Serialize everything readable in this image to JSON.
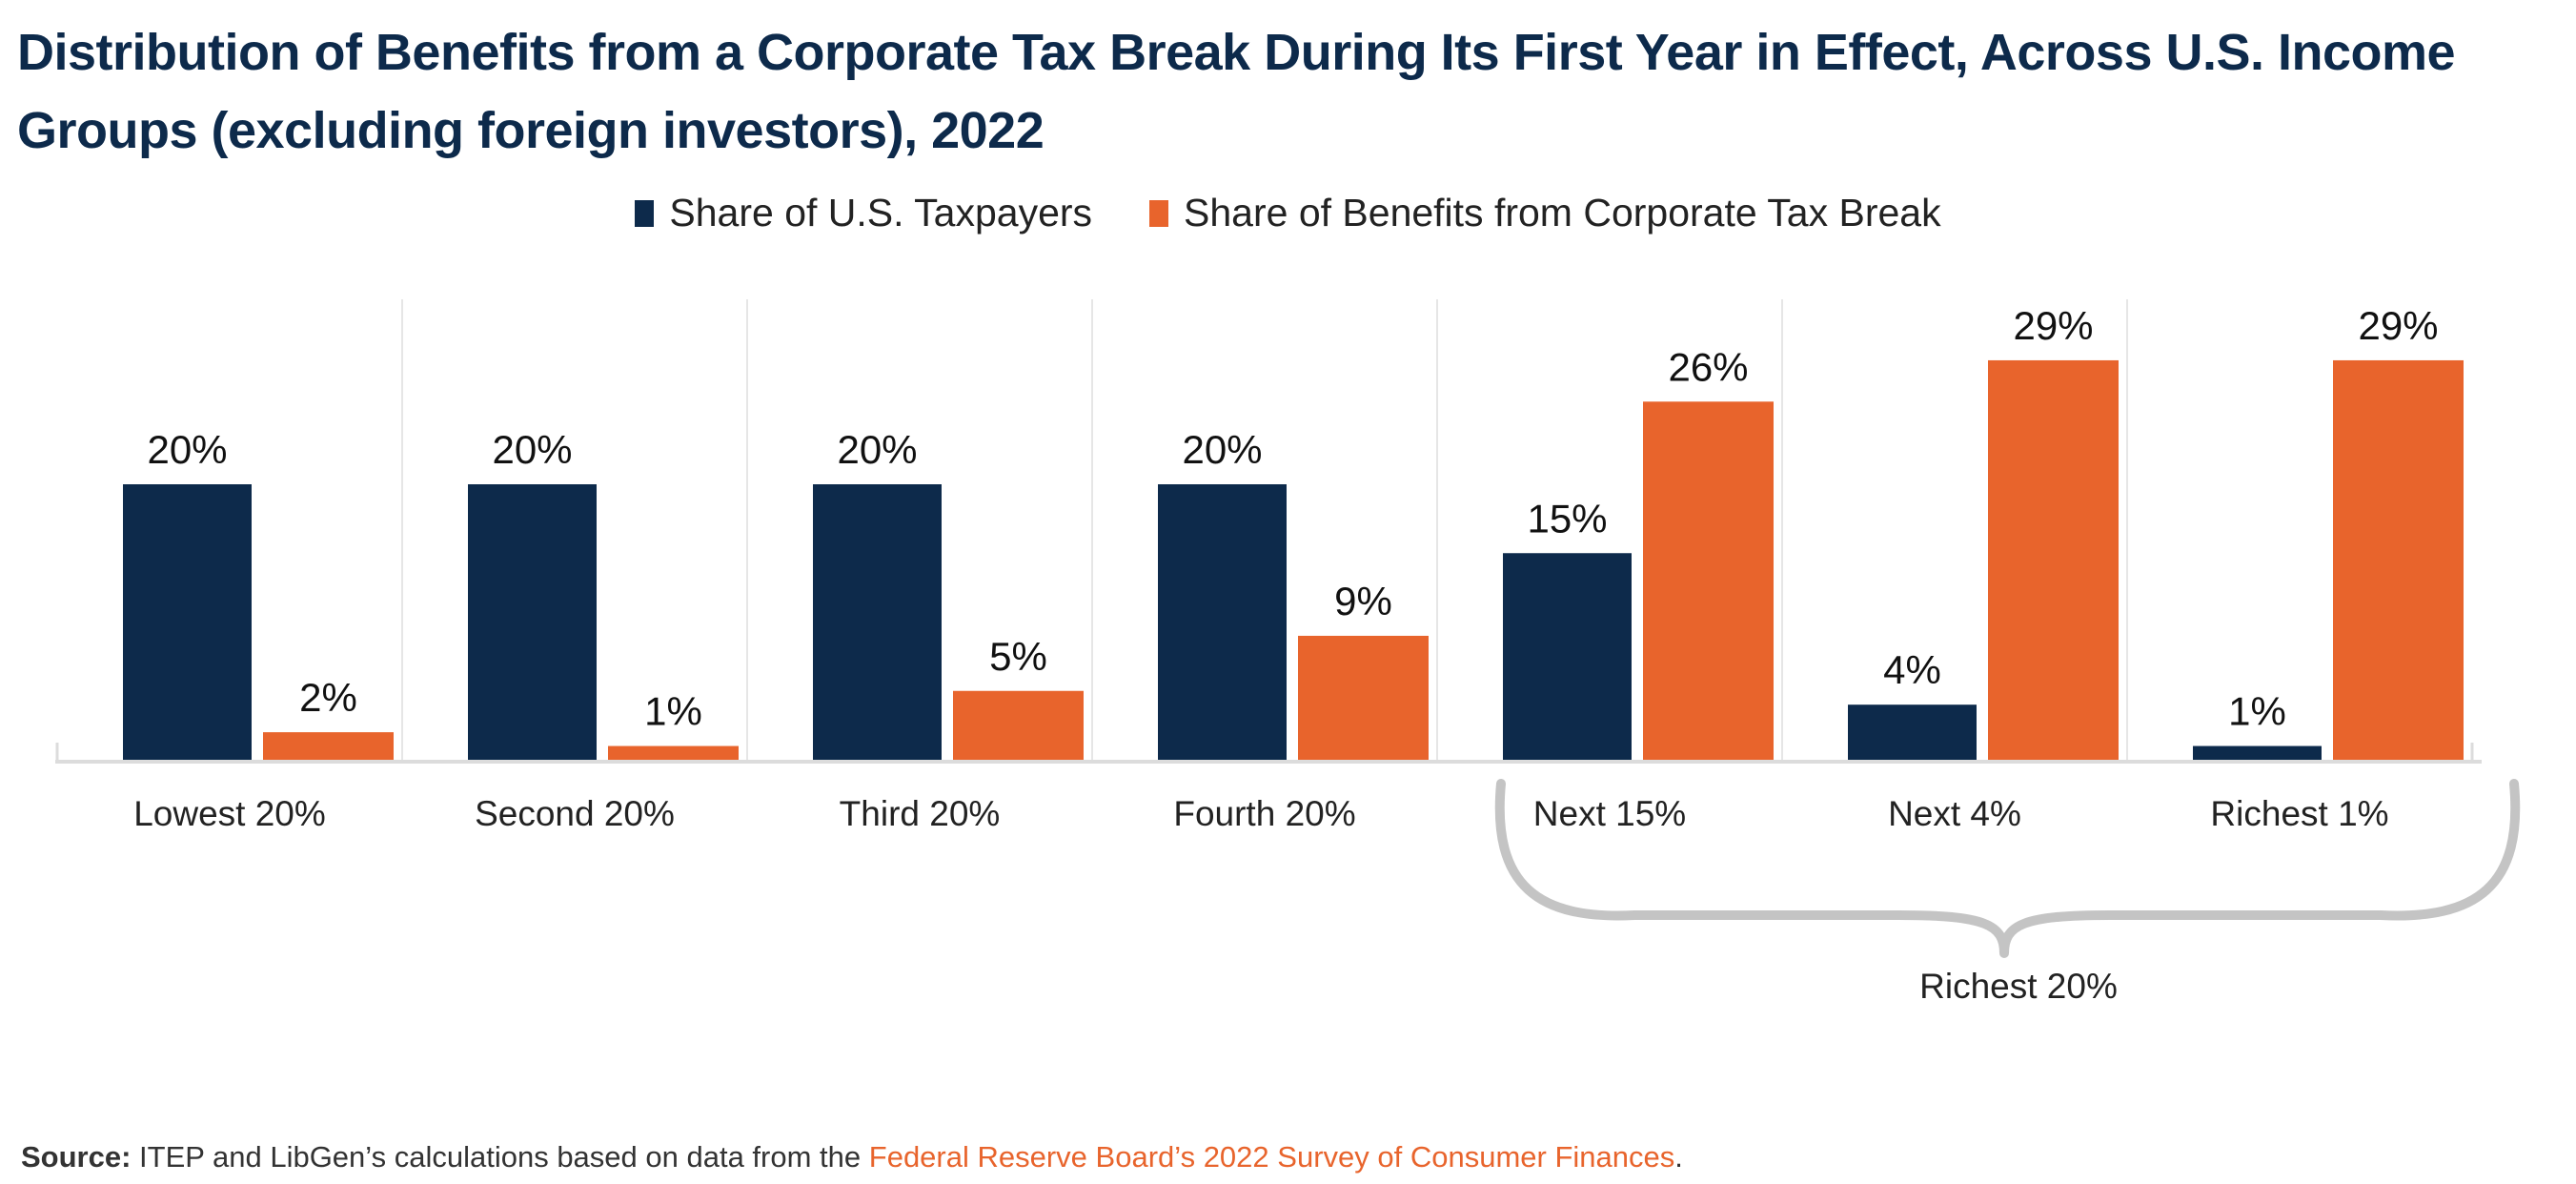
{
  "title": "Distribution of Benefits from a Corporate Tax Break During Its First Year in Effect, Across U.S. Income Groups (excluding foreign investors), 2022",
  "colors": {
    "navy": "#0d2a4b",
    "orange": "#e8642c",
    "grid": "#e6e6e6",
    "brace": "#c4c4c4"
  },
  "chart_data": {
    "type": "bar",
    "title": "Distribution of Benefits from a Corporate Tax Break During Its First Year in Effect, Across U.S. Income Groups (excluding foreign investors), 2022",
    "categories": [
      "Lowest 20%",
      "Second 20%",
      "Third 20%",
      "Fourth 20%",
      "Next 15%",
      "Next 4%",
      "Richest 1%"
    ],
    "series": [
      {
        "name": "Share of U.S. Taxpayers",
        "values": [
          20,
          20,
          20,
          20,
          15,
          4,
          1
        ],
        "labels": [
          "20%",
          "20%",
          "20%",
          "20%",
          "15%",
          "4%",
          "1%"
        ]
      },
      {
        "name": "Share of Benefits from Corporate Tax Break",
        "values": [
          2,
          1,
          5,
          9,
          26,
          29,
          29
        ],
        "labels": [
          "2%",
          "1%",
          "5%",
          "9%",
          "26%",
          "29%",
          "29%"
        ]
      }
    ],
    "ylim": [
      0,
      30
    ],
    "grid": false,
    "legend_position": "top-center",
    "annotation": "Richest 20%"
  },
  "source": {
    "label": "Source:",
    "text": " ITEP and LibGen’s calculations based on data from the ",
    "link": "Federal Reserve Board’s 2022 Survey of Consumer Finances",
    "end": "."
  }
}
